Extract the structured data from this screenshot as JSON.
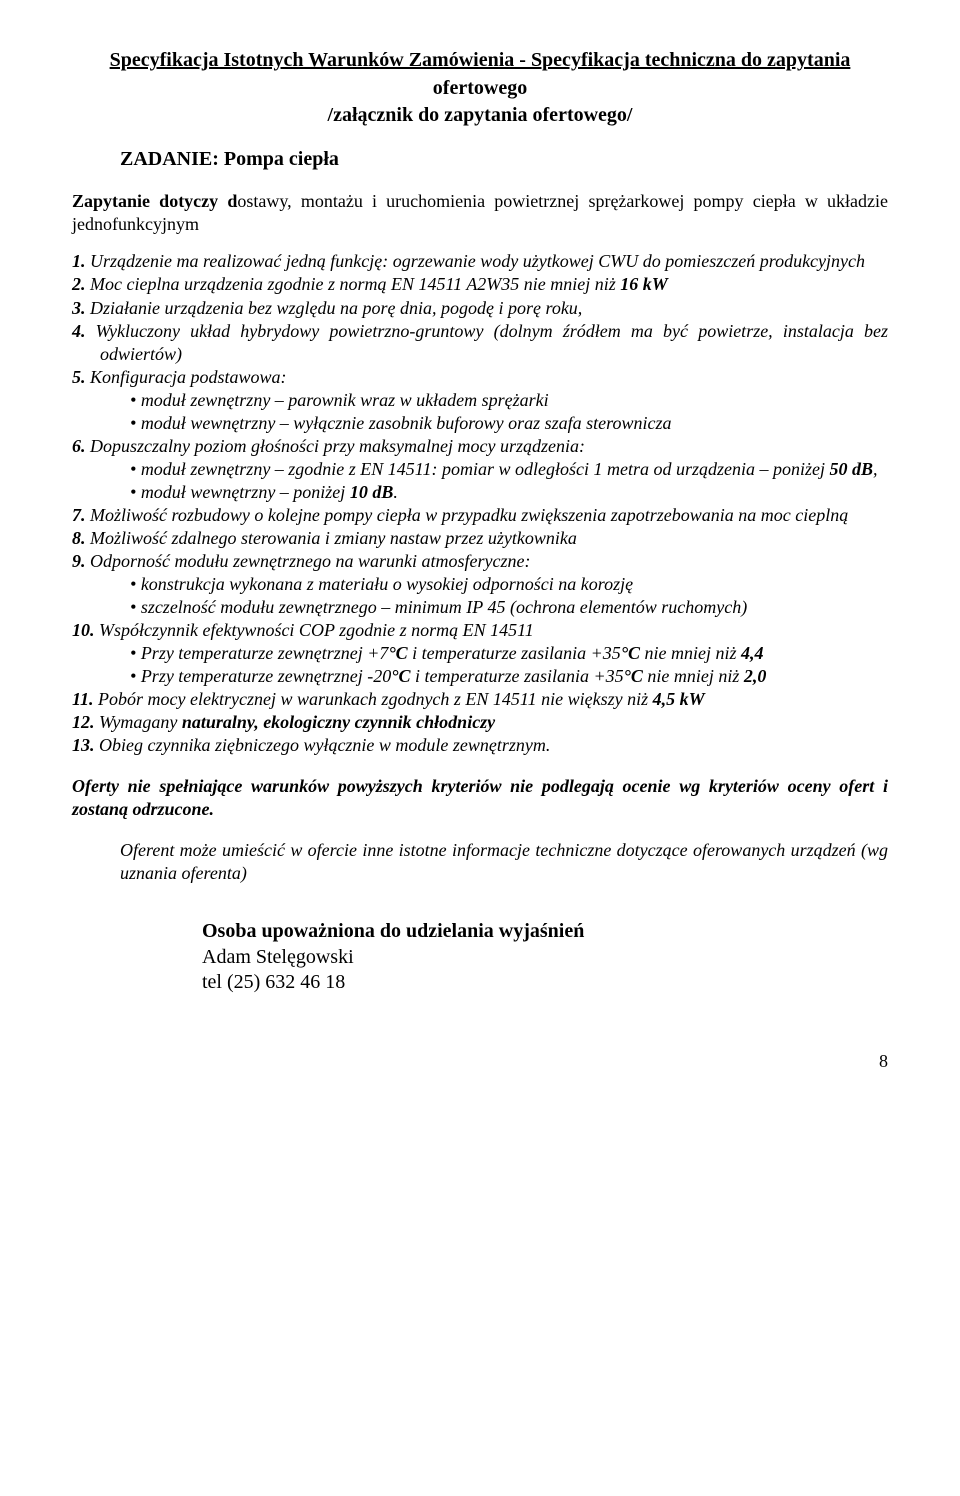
{
  "title": "Specyfikacja Istotnych Warunków Zamówienia - Specyfikacja techniczna do zapytania",
  "subtitle": "ofertowego",
  "attachment": "/załącznik do zapytania ofertowego/",
  "task_label": "ZADANIE: Pompa ciepła",
  "intro_lead": "Zapytanie dotyczy d",
  "intro_rest": "ostawy, montażu i uruchomienia powietrznej sprężarkowej pompy ciepła w układzie jednofunkcyjnym",
  "items": {
    "i1": "Urządzenie ma realizować jedną funkcję: ogrzewanie wody użytkowej CWU do pomieszczeń produkcyjnych",
    "i2a": "Moc cieplna urządzenia zgodnie z normą EN 14511 A2W35 nie mniej niż ",
    "i2b": "16 kW",
    "i3": "Działanie urządzenia bez względu na porę dnia, pogodę i porę roku,",
    "i4": "Wykluczony układ hybrydowy powietrzno-gruntowy (dolnym źródłem ma być powietrze, instalacja bez odwiertów)",
    "i5": "Konfiguracja podstawowa:",
    "i5b1": "moduł zewnętrzny – parownik wraz w układem sprężarki",
    "i5b2": "moduł wewnętrzny – wyłącznie zasobnik buforowy oraz szafa sterownicza",
    "i6": "Dopuszczalny poziom głośności przy maksymalnej mocy urządzenia:",
    "i6b1a": "moduł zewnętrzny – zgodnie z EN 14511: pomiar w odległości 1 metra od urządzenia – poniżej ",
    "i6b1b": "50 dB",
    "i6b1c": ",",
    "i6b2a": "moduł wewnętrzny – poniżej ",
    "i6b2b": "10 dB",
    "i6b2c": ".",
    "i7": "Możliwość rozbudowy o kolejne pompy ciepła w przypadku zwiększenia zapotrzebowania na moc cieplną",
    "i8": "Możliwość zdalnego sterowania i zmiany nastaw przez użytkownika",
    "i9": "Odporność modułu zewnętrznego na warunki atmosferyczne:",
    "i9b1": "konstrukcja wykonana z materiału o wysokiej odporności na korozję",
    "i9b2": "szczelność modułu zewnętrznego – minimum IP 45 (ochrona elementów ruchomych)",
    "i10": "Współczynnik efektywności COP zgodnie z normą EN 14511",
    "i10b1a": "Przy temperaturze zewnętrznej +7",
    "i10b1b": "°C",
    "i10b1c": "  i temperaturze zasilania +35",
    "i10b1d": "°C",
    "i10b1e": "  nie mniej niż ",
    "i10b1f": "4,4",
    "i10b2a": "Przy temperaturze zewnętrznej -20",
    "i10b2b": "°C",
    "i10b2c": "  i temperaturze zasilania +35",
    "i10b2d": "°C",
    "i10b2e": "  nie mniej niż ",
    "i10b2f": "2,0",
    "i11a": "Pobór mocy elektrycznej w warunkach zgodnych z EN 14511 nie większy niż ",
    "i11b": "4,5 kW",
    "i12a": "Wymagany ",
    "i12b": "naturalny, ekologiczny czynnik chłodniczy",
    "i13": "Obieg czynnika ziębniczego wyłącznie w module zewnętrznym."
  },
  "rejection": "Oferty nie spełniające warunków powyższych kryteriów nie podlegają ocenie wg kryteriów oceny ofert i zostaną odrzucone.",
  "note": "Oferent może umieścić w ofercie inne istotne informacje techniczne dotyczące oferowanych urządzeń (wg uznania oferenta)",
  "sign_head": "Osoba upoważniona do udzielania wyjaśnień",
  "sign_name": "Adam Stelęgowski",
  "sign_tel": "tel (25) 632 46 18",
  "page": "8"
}
